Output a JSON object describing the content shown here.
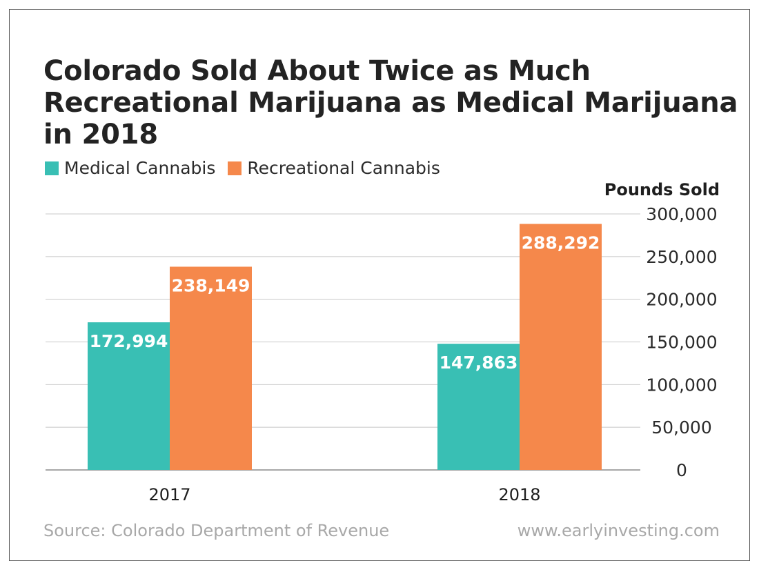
{
  "title_lines": [
    "Colorado Sold About Twice as Much",
    "Recreational Marijuana as Medical Marijuana",
    "in 2018"
  ],
  "legend": [
    {
      "label": "Medical Cannabis",
      "color": "#39bfb4"
    },
    {
      "label": "Recreational Cannabis",
      "color": "#f5884b"
    }
  ],
  "source": "Source: Colorado Department of Revenue",
  "website": "www.earlyinvesting.com",
  "chart_data": {
    "type": "bar",
    "categories": [
      "2017",
      "2018"
    ],
    "series": [
      {
        "name": "Medical Cannabis",
        "values": [
          172994,
          147863
        ],
        "labels": [
          "172,994",
          "147,863"
        ],
        "color": "#39bfb4"
      },
      {
        "name": "Recreational Cannabis",
        "values": [
          238149,
          288292
        ],
        "labels": [
          "238,149",
          "288,292"
        ],
        "color": "#f5884b"
      }
    ],
    "ylabel": "Pounds Sold",
    "ylim": [
      0,
      300000
    ],
    "yticks": [
      0,
      50000,
      100000,
      150000,
      200000,
      250000,
      300000
    ],
    "ytick_labels": [
      "0",
      "50,000",
      "100,000",
      "150,000",
      "200,000",
      "250,000",
      "300,000"
    ],
    "y_axis_position": "right",
    "grid": true,
    "legend_position": "top-left"
  }
}
